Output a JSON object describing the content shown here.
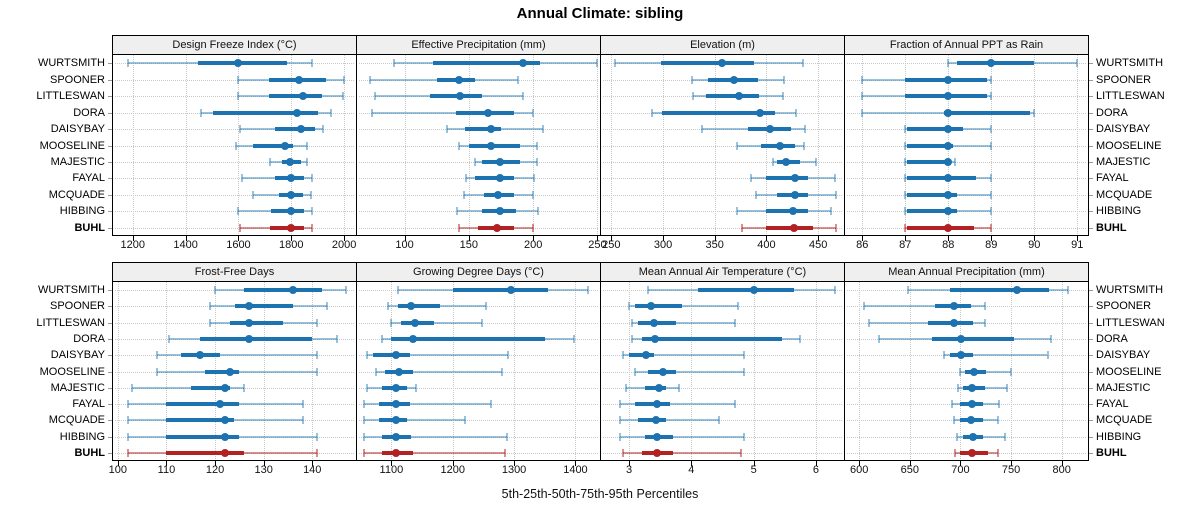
{
  "title": "Annual Climate: sibling",
  "caption": "5th-25th-50th-75th-95th Percentiles",
  "stations": [
    "WURTSMITH",
    "SPOONER",
    "LITTLESWAN",
    "DORA",
    "DAISYBAY",
    "MOOSELINE",
    "MAJESTIC",
    "FAYAL",
    "MCQUADE",
    "HIBBING",
    "BUHL"
  ],
  "highlight_station": "BUHL",
  "colors": {
    "series": "#1d72b0",
    "series_light": "rgba(31,119,180,0.45)",
    "highlight": "#b22222",
    "highlight_light": "rgba(178,34,34,0.5)",
    "strip_bg": "#efefef",
    "grid": "#c9c9c9"
  },
  "chart_data": [
    {
      "type": "dotplot-percentiles",
      "title": "Design Freeze Index (°C)",
      "percentiles": [
        5,
        25,
        50,
        75,
        95
      ],
      "xlim": [
        1125,
        2045
      ],
      "ticks": [
        1200,
        1400,
        1600,
        1800,
        2000
      ],
      "rows": [
        [
          1180,
          1445,
          1600,
          1785,
          1880
        ],
        [
          1600,
          1715,
          1830,
          1930,
          2000
        ],
        [
          1600,
          1715,
          1845,
          1915,
          1995
        ],
        [
          1460,
          1505,
          1820,
          1900,
          1950
        ],
        [
          1605,
          1740,
          1835,
          1890,
          1920
        ],
        [
          1590,
          1655,
          1775,
          1805,
          1860
        ],
        [
          1720,
          1765,
          1795,
          1835,
          1860
        ],
        [
          1615,
          1740,
          1800,
          1850,
          1880
        ],
        [
          1655,
          1755,
          1800,
          1845,
          1875
        ],
        [
          1600,
          1725,
          1800,
          1850,
          1880
        ],
        [
          1605,
          1720,
          1800,
          1850,
          1880
        ]
      ]
    },
    {
      "type": "dotplot-percentiles",
      "title": "Effective Precipitation (mm)",
      "percentiles": [
        5,
        25,
        50,
        75,
        95
      ],
      "xlim": [
        63,
        252
      ],
      "ticks": [
        100,
        150,
        200,
        250
      ],
      "rows": [
        [
          92,
          122,
          192,
          205,
          250
        ],
        [
          73,
          125,
          142,
          155,
          188
        ],
        [
          77,
          120,
          143,
          160,
          192
        ],
        [
          75,
          140,
          165,
          185,
          200
        ],
        [
          133,
          147,
          167,
          175,
          208
        ],
        [
          142,
          150,
          167,
          190,
          203
        ],
        [
          155,
          160,
          174,
          190,
          203
        ],
        [
          148,
          155,
          174,
          185,
          201
        ],
        [
          146,
          162,
          173,
          185,
          200
        ],
        [
          141,
          160,
          174,
          187,
          204
        ],
        [
          142,
          157,
          172,
          185,
          200
        ]
      ]
    },
    {
      "type": "dotplot-percentiles",
      "title": "Elevation (m)",
      "percentiles": [
        5,
        25,
        50,
        75,
        95
      ],
      "xlim": [
        240,
        475
      ],
      "ticks": [
        250,
        300,
        350,
        400,
        450
      ],
      "rows": [
        [
          254,
          298,
          357,
          388,
          435
        ],
        [
          328,
          343,
          369,
          392,
          417
        ],
        [
          329,
          342,
          373,
          393,
          416
        ],
        [
          289,
          299,
          394,
          408,
          429
        ],
        [
          338,
          382,
          403,
          424,
          437
        ],
        [
          372,
          395,
          413,
          428,
          436
        ],
        [
          406,
          410,
          419,
          432,
          448
        ],
        [
          385,
          400,
          428,
          440,
          466
        ],
        [
          390,
          410,
          428,
          440,
          467
        ],
        [
          372,
          400,
          426,
          440,
          462
        ],
        [
          376,
          400,
          427,
          445,
          467
        ]
      ]
    },
    {
      "type": "dotplot-percentiles",
      "title": "Fraction of Annual PPT as Rain",
      "percentiles": [
        5,
        25,
        50,
        75,
        95
      ],
      "xlim": [
        85.6,
        91.25
      ],
      "ticks": [
        86,
        87,
        88,
        89,
        90,
        91
      ],
      "rows": [
        [
          88,
          88.2,
          89,
          90,
          91
        ],
        [
          86,
          87,
          88,
          88.9,
          89
        ],
        [
          86,
          87,
          88,
          88.9,
          89
        ],
        [
          86,
          87.9,
          88,
          89.9,
          90
        ],
        [
          87,
          87.05,
          88,
          88.35,
          89
        ],
        [
          87,
          87.05,
          88,
          88.1,
          89
        ],
        [
          87,
          87.05,
          88,
          88.05,
          88.15
        ],
        [
          87,
          87.05,
          88,
          88.65,
          89
        ],
        [
          87,
          87.05,
          88,
          88.2,
          89
        ],
        [
          87,
          87.05,
          88,
          88.2,
          89
        ],
        [
          87,
          87.05,
          88,
          88.6,
          89
        ]
      ]
    },
    {
      "type": "dotplot-percentiles",
      "title": "Frost-Free Days",
      "percentiles": [
        5,
        25,
        50,
        75,
        95
      ],
      "xlim": [
        99,
        149
      ],
      "ticks": [
        100,
        110,
        120,
        130,
        140
      ],
      "rows": [
        [
          120,
          126,
          136,
          142,
          147
        ],
        [
          119,
          124,
          127,
          136,
          143
        ],
        [
          119,
          123,
          127,
          134,
          141
        ],
        [
          110.5,
          117,
          127,
          140,
          145
        ],
        [
          108,
          113,
          117,
          121,
          141
        ],
        [
          108,
          118,
          123,
          125,
          141
        ],
        [
          103,
          115,
          122,
          123,
          126
        ],
        [
          102,
          110,
          121,
          125,
          138
        ],
        [
          102,
          110,
          122,
          124,
          138
        ],
        [
          102,
          110,
          122,
          125,
          141
        ],
        [
          102,
          110,
          122,
          126,
          141
        ]
      ]
    },
    {
      "type": "dotplot-percentiles",
      "title": "Growing Degree Days (°C)",
      "percentiles": [
        5,
        25,
        50,
        75,
        95
      ],
      "xlim": [
        1044,
        1440
      ],
      "ticks": [
        1100,
        1200,
        1300,
        1400
      ],
      "rows": [
        [
          1110,
          1200,
          1295,
          1355,
          1420
        ],
        [
          1095,
          1110,
          1132,
          1180,
          1255
        ],
        [
          1100,
          1115,
          1138,
          1170,
          1248
        ],
        [
          1085,
          1100,
          1135,
          1350,
          1398
        ],
        [
          1060,
          1070,
          1107,
          1130,
          1290
        ],
        [
          1075,
          1090,
          1112,
          1135,
          1280
        ],
        [
          1060,
          1085,
          1108,
          1125,
          1140
        ],
        [
          1055,
          1080,
          1107,
          1130,
          1262
        ],
        [
          1055,
          1080,
          1107,
          1125,
          1220
        ],
        [
          1055,
          1085,
          1107,
          1132,
          1288
        ],
        [
          1055,
          1085,
          1107,
          1135,
          1285
        ]
      ]
    },
    {
      "type": "dotplot-percentiles",
      "title": "Mean Annual Air Temperature (°C)",
      "percentiles": [
        5,
        25,
        50,
        75,
        95
      ],
      "xlim": [
        2.55,
        6.45
      ],
      "ticks": [
        3,
        4,
        5,
        6
      ],
      "rows": [
        [
          3.3,
          4.1,
          5.0,
          5.65,
          6.3
        ],
        [
          3.0,
          3.1,
          3.35,
          3.85,
          4.75
        ],
        [
          3.05,
          3.15,
          3.4,
          3.75,
          4.7
        ],
        [
          3.05,
          3.2,
          3.42,
          5.45,
          5.75
        ],
        [
          2.9,
          3.0,
          3.28,
          3.4,
          4.85
        ],
        [
          3.1,
          3.3,
          3.55,
          3.75,
          4.85
        ],
        [
          2.95,
          3.25,
          3.48,
          3.6,
          3.8
        ],
        [
          2.85,
          3.1,
          3.45,
          3.65,
          4.7
        ],
        [
          2.85,
          3.15,
          3.43,
          3.6,
          4.45
        ],
        [
          2.85,
          3.25,
          3.45,
          3.7,
          4.85
        ],
        [
          2.9,
          3.2,
          3.45,
          3.7,
          4.8
        ]
      ]
    },
    {
      "type": "dotplot-percentiles",
      "title": "Mean Annual Precipitation (mm)",
      "percentiles": [
        5,
        25,
        50,
        75,
        95
      ],
      "xlim": [
        586,
        826
      ],
      "ticks": [
        600,
        650,
        700,
        750,
        800
      ],
      "rows": [
        [
          648,
          690,
          756,
          787,
          806
        ],
        [
          605,
          675,
          694,
          710,
          724
        ],
        [
          610,
          668,
          694,
          712,
          724
        ],
        [
          620,
          672,
          701,
          753,
          789
        ],
        [
          684,
          690,
          701,
          712,
          786
        ],
        [
          700,
          705,
          713,
          725,
          750
        ],
        [
          698,
          703,
          711,
          724,
          746
        ],
        [
          692,
          700,
          711,
          722,
          738
        ],
        [
          694,
          700,
          710,
          722,
          737
        ],
        [
          697,
          703,
          712,
          722,
          744
        ],
        [
          695,
          700,
          711,
          727,
          737
        ]
      ]
    }
  ]
}
